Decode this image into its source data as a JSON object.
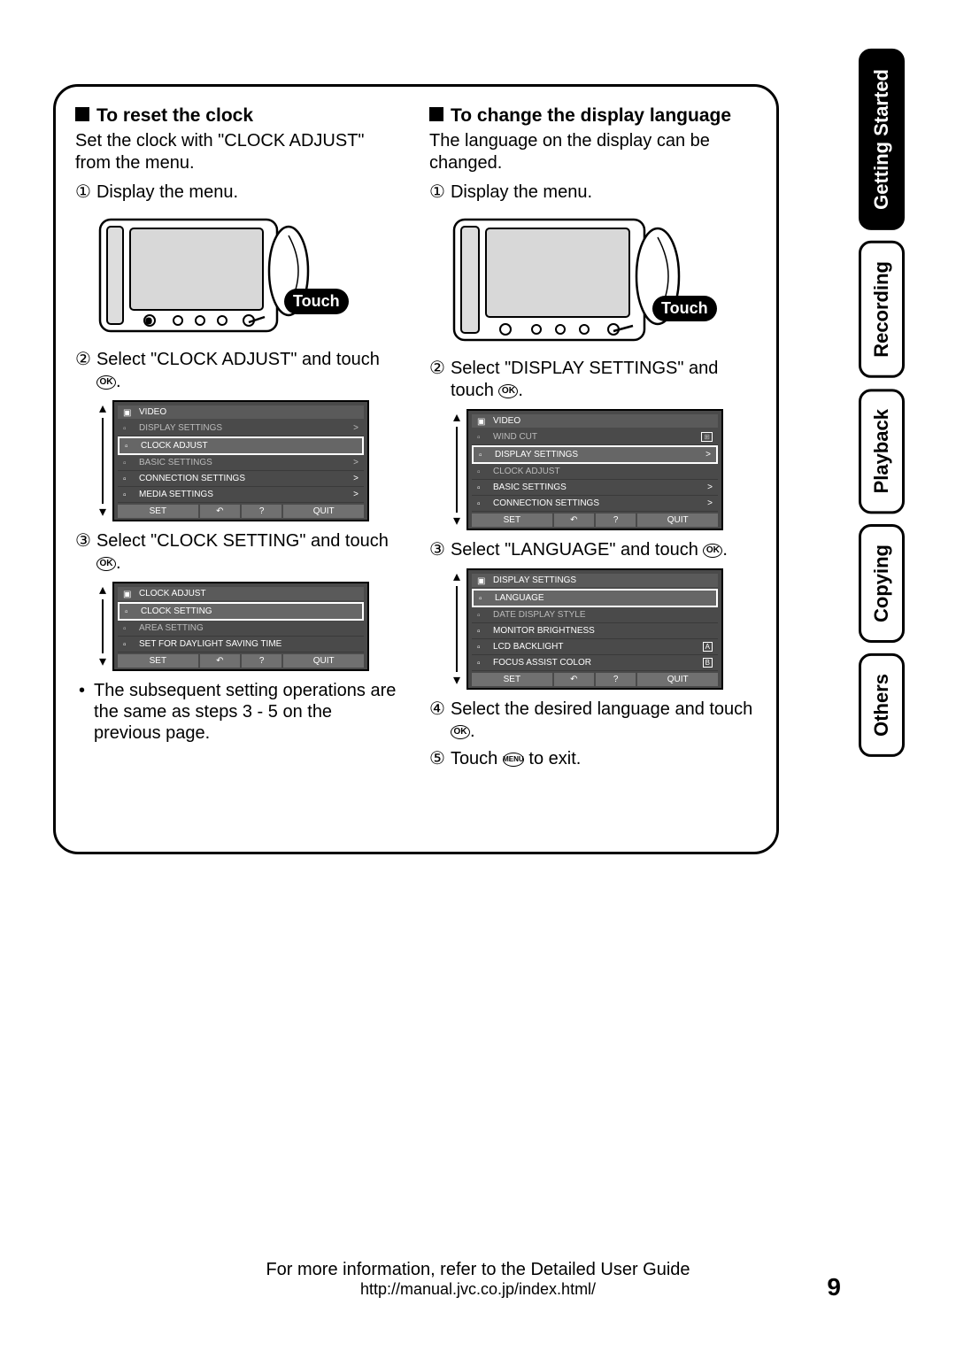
{
  "left": {
    "heading": "To reset the clock",
    "intro": "Set the clock with \"CLOCK ADJUST\" from the menu.",
    "step1": "Display the menu.",
    "touch_label": "Touch",
    "step2": "Select \"CLOCK ADJUST\" and touch ",
    "menu1": {
      "header": "VIDEO",
      "items": [
        {
          "label": "DISPLAY SETTINGS",
          "dim": true,
          "chev": ">"
        },
        {
          "label": "CLOCK ADJUST",
          "selected": true
        },
        {
          "label": "BASIC SETTINGS",
          "dim": true,
          "chev": ">"
        },
        {
          "label": "CONNECTION SETTINGS",
          "chev": ">"
        },
        {
          "label": "MEDIA SETTINGS",
          "chev": ">"
        }
      ],
      "footer": {
        "set": "SET",
        "back": "↶",
        "help": "?",
        "quit": "QUIT"
      }
    },
    "step3": "Select \"CLOCK SETTING\" and touch ",
    "menu2": {
      "header": "CLOCK ADJUST",
      "items": [
        {
          "label": "CLOCK SETTING",
          "selected": true
        },
        {
          "label": "AREA SETTING",
          "dim": true
        },
        {
          "label": "SET FOR DAYLIGHT SAVING TIME"
        }
      ],
      "footer": {
        "set": "SET",
        "back": "↶",
        "help": "?",
        "quit": "QUIT"
      }
    },
    "bullet": "The subsequent setting operations are the same as steps 3 - 5 on the previous page."
  },
  "right": {
    "heading": "To change the display language",
    "intro": "The language on the display can be changed.",
    "step1": "Display the menu.",
    "touch_label": "Touch",
    "step2": "Select \"DISPLAY SETTINGS\" and touch ",
    "menu1": {
      "header": "VIDEO",
      "items": [
        {
          "label": "WIND CUT",
          "dim": true,
          "badge": "⊞"
        },
        {
          "label": "DISPLAY SETTINGS",
          "selected": true,
          "chev": ">"
        },
        {
          "label": "CLOCK ADJUST",
          "dim": true
        },
        {
          "label": "BASIC SETTINGS",
          "chev": ">"
        },
        {
          "label": "CONNECTION SETTINGS",
          "chev": ">"
        }
      ],
      "footer": {
        "set": "SET",
        "back": "↶",
        "help": "?",
        "quit": "QUIT"
      }
    },
    "step3": "Select \"LANGUAGE\" and touch ",
    "menu2": {
      "header": "DISPLAY SETTINGS",
      "items": [
        {
          "label": "LANGUAGE",
          "selected": true
        },
        {
          "label": "DATE DISPLAY STYLE",
          "dim": true
        },
        {
          "label": "MONITOR BRIGHTNESS"
        },
        {
          "label": "LCD BACKLIGHT",
          "badge": "A"
        },
        {
          "label": "FOCUS ASSIST COLOR",
          "badge": "B"
        }
      ],
      "footer": {
        "set": "SET",
        "back": "↶",
        "help": "?",
        "quit": "QUIT"
      }
    },
    "step4": "Select the desired language and touch ",
    "step5_a": "Touch ",
    "step5_b": " to exit."
  },
  "tabs": {
    "getting_started": "Getting Started",
    "recording": "Recording",
    "playback": "Playback",
    "copying": "Copying",
    "others": "Others"
  },
  "footer": {
    "line1": "For more information, refer to the Detailed User Guide",
    "url": "http://manual.jvc.co.jp/index.html/"
  },
  "page_number": "9",
  "ok_label": "OK",
  "menu_label": "MENU",
  "circled": {
    "1": "①",
    "2": "②",
    "3": "③",
    "4": "④",
    "5": "⑤"
  },
  "colors": {
    "black": "#000000",
    "menu_bg": "#4a4a4a",
    "menu_row": "#5a5a5a"
  }
}
